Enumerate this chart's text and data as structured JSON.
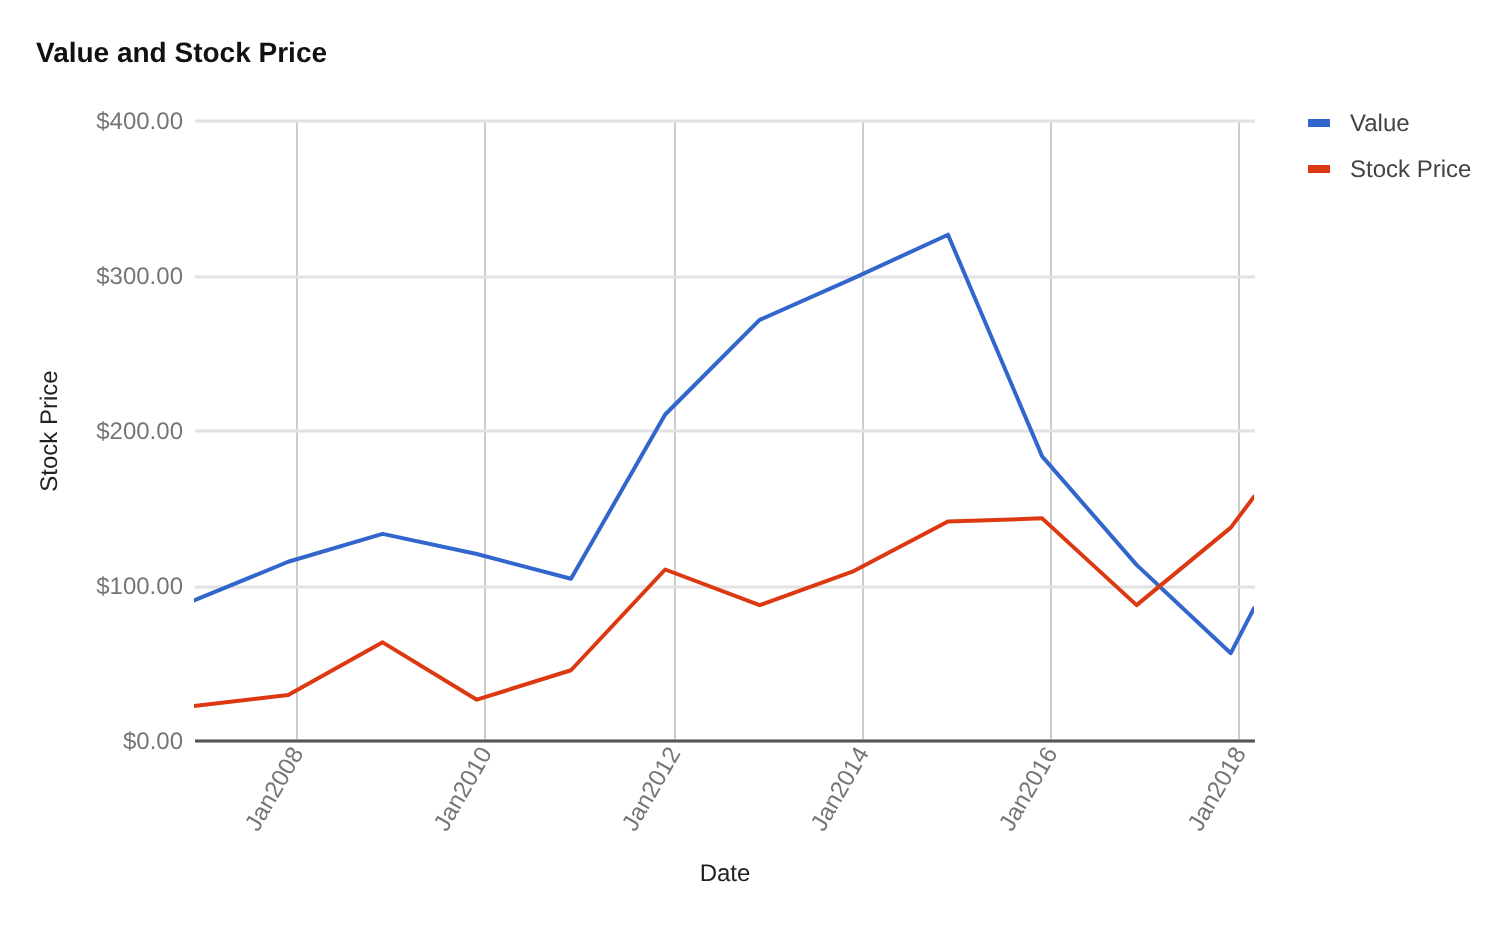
{
  "chart_data": {
    "type": "line",
    "title": "Value and Stock Price",
    "xlabel": "Date",
    "ylabel": "Stock Price",
    "x": [
      "2006-12",
      "2007-12",
      "2008-12",
      "2009-12",
      "2010-12",
      "2011-12",
      "2012-12",
      "2013-12",
      "2014-12",
      "2015-12",
      "2016-12",
      "2017-12",
      "2018-03"
    ],
    "series": [
      {
        "name": "Value",
        "color": "#3366cc",
        "values": [
          90,
          115,
          133,
          120,
          104,
          210,
          271,
          298,
          326,
          183,
          113,
          56,
          85
        ]
      },
      {
        "name": "Stock Price",
        "color": "#dc3912",
        "values": [
          22,
          29,
          63,
          26,
          45,
          110,
          87,
          109,
          141,
          143,
          87,
          137,
          157
        ]
      }
    ],
    "xlim": [
      "2006-12",
      "2018-03"
    ],
    "xticks": [
      {
        "value": "2008-01",
        "label": "Jan2008"
      },
      {
        "value": "2010-01",
        "label": "Jan2010"
      },
      {
        "value": "2012-01",
        "label": "Jan2012"
      },
      {
        "value": "2014-01",
        "label": "Jan2014"
      },
      {
        "value": "2016-01",
        "label": "Jan2016"
      },
      {
        "value": "2018-01",
        "label": "Jan2018"
      }
    ],
    "ylim": [
      0,
      400
    ],
    "yticks": [
      {
        "value": 0,
        "label": "$0.00"
      },
      {
        "value": 100,
        "label": "$100.00"
      },
      {
        "value": 200,
        "label": "$200.00"
      },
      {
        "value": 300,
        "label": "$300.00"
      },
      {
        "value": 400,
        "label": "$400.00"
      }
    ],
    "grid": true,
    "legend": "right"
  }
}
